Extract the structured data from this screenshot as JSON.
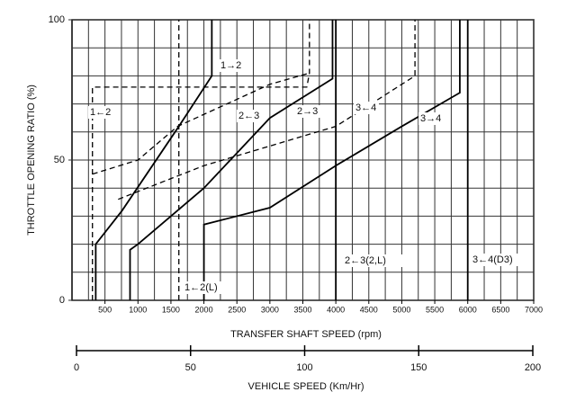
{
  "chart_data": {
    "type": "line",
    "y_title": "THROTTLE OPENING RATIO (%)",
    "x_title": "TRANSFER SHAFT SPEED (rpm)",
    "x2_title": "VEHICLE SPEED (Km/Hr)",
    "xlim": [
      0,
      7000
    ],
    "xticks": [
      500,
      1000,
      1500,
      2000,
      2500,
      3000,
      3500,
      4000,
      4500,
      5000,
      5500,
      6000,
      6500,
      7000
    ],
    "xgrid": [
      250,
      500,
      750,
      1000,
      1250,
      1500,
      1750,
      2000,
      2250,
      2500,
      2750,
      3000,
      3250,
      3500,
      3750,
      4000,
      4250,
      4500,
      4750,
      5000,
      5250,
      5500,
      5750,
      6000,
      6250,
      6500,
      6750,
      7000
    ],
    "ylim": [
      0,
      100
    ],
    "yticks": [
      0,
      50,
      100
    ],
    "ygrid": [
      10,
      20,
      30,
      40,
      60,
      70,
      80,
      90
    ],
    "x2lim": [
      0,
      200
    ],
    "x2ticks": [
      0,
      50,
      100,
      150,
      200
    ],
    "series": [
      {
        "name": "1→2",
        "color": "#000000",
        "dash": false,
        "x": [
          360,
          360,
          760,
          1620,
          2120,
          2120
        ],
        "values": [
          0,
          20,
          32,
          62,
          80,
          100
        ]
      },
      {
        "name": "1←2",
        "color": "#000000",
        "dash": true,
        "x": [
          310,
          310,
          3560,
          3600,
          3600
        ],
        "values": [
          0,
          76,
          76,
          81,
          100
        ]
      },
      {
        "name": "2←3",
        "color": "#000000",
        "dash": true,
        "x": [
          310,
          1000,
          1600,
          3000,
          3600
        ],
        "values": [
          45,
          50,
          62,
          77,
          81
        ]
      },
      {
        "name": "2→3",
        "color": "#000000",
        "dash": false,
        "x": [
          880,
          880,
          1000,
          2000,
          3000,
          3950,
          3950
        ],
        "values": [
          0,
          18,
          20,
          40,
          65,
          79,
          100
        ]
      },
      {
        "name": "3←4",
        "color": "#000000",
        "dash": true,
        "x": [
          700,
          2000,
          4000,
          5200,
          5200
        ],
        "values": [
          36,
          48,
          62,
          80,
          100
        ]
      },
      {
        "name": "3→4",
        "color": "#000000",
        "dash": false,
        "x": [
          2000,
          2000,
          3000,
          4000,
          5000,
          5880,
          5880
        ],
        "values": [
          0,
          27,
          33,
          48,
          62,
          74,
          100
        ]
      },
      {
        "name": "1←2(L)",
        "color": "#000000",
        "dash": true,
        "x": [
          1620,
          1620
        ],
        "values": [
          0,
          100
        ]
      },
      {
        "name": "2←3(2,L)",
        "color": "#000000",
        "dash": false,
        "x": [
          4000,
          4000
        ],
        "values": [
          0,
          100
        ]
      },
      {
        "name": "3←4(D3)",
        "color": "#000000",
        "dash": false,
        "x": [
          6000,
          6000
        ],
        "values": [
          0,
          100
        ]
      }
    ]
  }
}
